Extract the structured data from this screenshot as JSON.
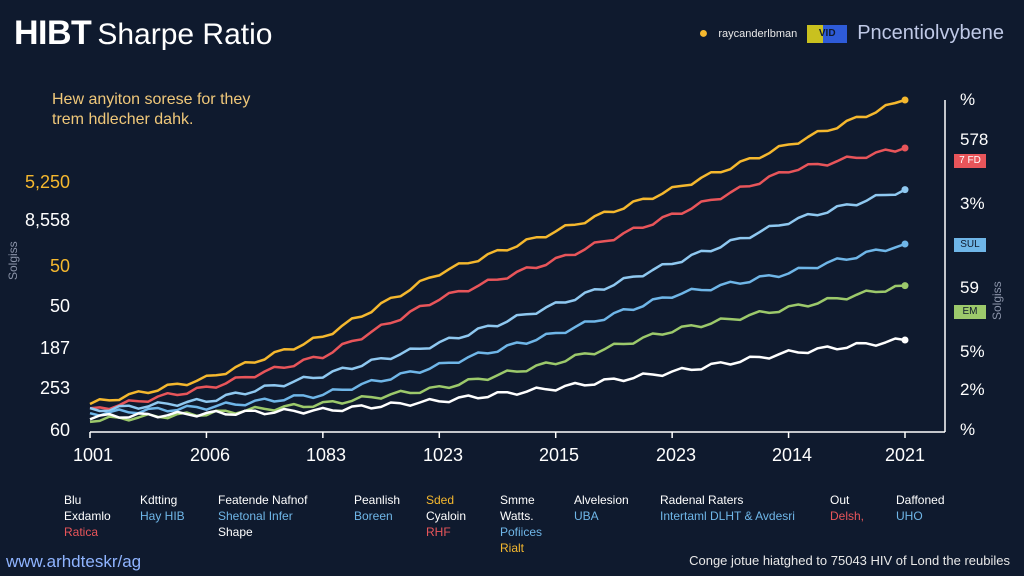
{
  "header": {
    "title_main": "HIBT",
    "title_sub": "Sharpe Ratio",
    "brand_small": "raycanderlbman",
    "brand_logo": "VID",
    "brand_name": "Pncentiolvybene",
    "icons": {
      "pin": "location-pin-icon"
    }
  },
  "subtitle": [
    "Hew anyiton sorese for they",
    "trem hdlecher dahk."
  ],
  "left_axis": [
    "5,250",
    "8,558",
    "50",
    "50",
    "187",
    "253",
    "60"
  ],
  "left_axis_colors": [
    "#f5b82e",
    "#ffffff",
    "#f5b82e",
    "#ffffff",
    "#ffffff",
    "#ffffff",
    "#ffffff"
  ],
  "left_axis_title": "Solgiss",
  "right_axis": [
    "%",
    "578",
    "7 FD",
    "3%",
    "SUL",
    "59",
    "EM",
    "5%",
    "2%",
    "%"
  ],
  "right_axis_title": "Solgiss",
  "x_axis": [
    "1001",
    "2006",
    "1083",
    "1023",
    "2015",
    "2023",
    "2014",
    "2021"
  ],
  "legend": [
    {
      "lines": [
        "Blu",
        "Exdamlo",
        "Ratica"
      ],
      "colors": [
        "#ffffff",
        "#ffffff",
        "#e8555a"
      ]
    },
    {
      "lines": [
        "Kdtting",
        "Hay HIB"
      ],
      "colors": [
        "#ffffff",
        "#6fb6e8"
      ]
    },
    {
      "lines": [
        "Featende Nafnof",
        "Shetonal Infer",
        "Shape"
      ],
      "colors": [
        "#ffffff",
        "#6fb6e8",
        "#ffffff"
      ]
    },
    {
      "lines": [
        "Peanlish",
        "Boreen"
      ],
      "colors": [
        "#ffffff",
        "#6fb6e8"
      ]
    },
    {
      "lines": [
        "Sded",
        "Cyaloin",
        "RHF"
      ],
      "colors": [
        "#f5b82e",
        "#ffffff",
        "#e8555a"
      ]
    },
    {
      "lines": [
        "Smme",
        "Watts.",
        "Pofiices",
        "Rialt"
      ],
      "colors": [
        "#ffffff",
        "#ffffff",
        "#6fb6e8",
        "#f5b82e"
      ]
    },
    {
      "lines": [
        "Alvelesion",
        "UBA"
      ],
      "colors": [
        "#ffffff",
        "#6fb6e8"
      ]
    },
    {
      "lines": [
        "Radenal Raters",
        "Intertaml DLHT & Avdesri"
      ],
      "colors": [
        "#ffffff",
        "#6fb6e8"
      ]
    },
    {
      "lines": [
        "Out",
        "Delsh,"
      ],
      "colors": [
        "#ffffff",
        "#e8555a"
      ]
    },
    {
      "lines": [
        "Daffoned",
        "UHO"
      ],
      "colors": [
        "#ffffff",
        "#6fb6e8"
      ]
    }
  ],
  "footer_left": "www.arhdteskr/ag",
  "footer_right": "Conge jotue hiatghed to 75043 HIV of Lond the reubiles",
  "chart_data": {
    "type": "line",
    "x": [
      "1001",
      "2006",
      "1083",
      "1023",
      "2015",
      "2023",
      "2014",
      "2021"
    ],
    "ylabel": "Solgiss",
    "grid": false,
    "legend_placement": "bottom",
    "series": [
      {
        "color": "#f5b82e",
        "values": [
          0.05,
          0.13,
          0.26,
          0.46,
          0.59,
          0.72,
          0.86,
          1.0
        ]
      },
      {
        "color": "#e8555a",
        "values": [
          0.03,
          0.1,
          0.2,
          0.38,
          0.5,
          0.64,
          0.78,
          0.85
        ]
      },
      {
        "color": "#8fc8f0",
        "values": [
          0.03,
          0.06,
          0.14,
          0.24,
          0.36,
          0.49,
          0.62,
          0.72
        ]
      },
      {
        "color": "#6fb6e8",
        "values": [
          0.02,
          0.04,
          0.08,
          0.17,
          0.27,
          0.39,
          0.46,
          0.55
        ]
      },
      {
        "color": "#9cc96b",
        "values": [
          0.0,
          0.02,
          0.05,
          0.1,
          0.18,
          0.28,
          0.35,
          0.42
        ]
      },
      {
        "color": "#ffffff",
        "values": [
          0.01,
          0.02,
          0.03,
          0.06,
          0.1,
          0.15,
          0.21,
          0.25
        ]
      }
    ]
  }
}
